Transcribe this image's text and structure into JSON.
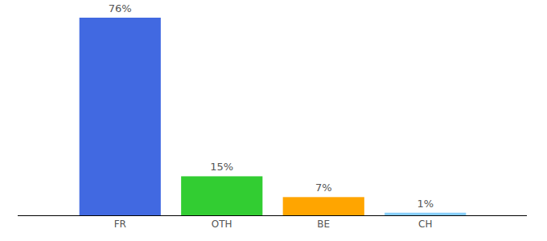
{
  "chart_data": {
    "type": "bar",
    "categories": [
      "FR",
      "OTH",
      "BE",
      "CH"
    ],
    "values": [
      76,
      15,
      7,
      1
    ],
    "value_labels": [
      "76%",
      "15%",
      "7%",
      "1%"
    ],
    "colors": [
      "#4169e1",
      "#32cd32",
      "#ffa500",
      "#87cefa"
    ],
    "ylim": [
      0,
      76
    ],
    "data_labels": true,
    "tick_labels": "x",
    "grid": false
  }
}
